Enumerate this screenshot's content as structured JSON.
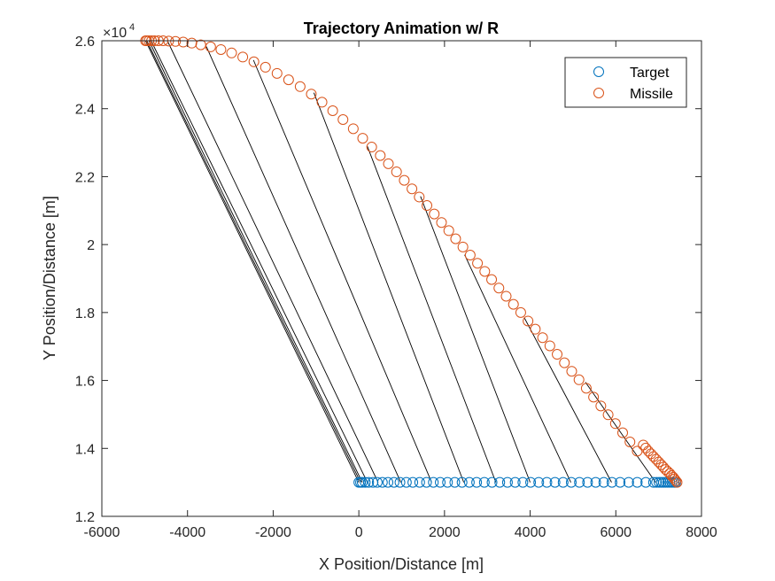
{
  "chart_data": {
    "type": "scatter",
    "title": "Trajectory Animation w/ R",
    "xlabel": "X Position/Distance [m]",
    "ylabel": "Y Position/Distance [m]",
    "xlim": [
      -6000,
      8000
    ],
    "ylim": [
      12000,
      26000
    ],
    "x_ticks": [
      -6000,
      -4000,
      -2000,
      0,
      2000,
      4000,
      6000,
      8000
    ],
    "x_tick_labels": [
      "-6000",
      "-4000",
      "-2000",
      "0",
      "2000",
      "4000",
      "6000",
      "8000"
    ],
    "y_ticks": [
      12000,
      14000,
      16000,
      18000,
      20000,
      22000,
      24000,
      26000
    ],
    "y_tick_labels": [
      "1.2",
      "1.4",
      "1.6",
      "1.8",
      "2",
      "2.2",
      "2.4",
      "2.6"
    ],
    "y_exponent": {
      "base": "×10",
      "power": "4"
    },
    "grid": false,
    "legend_position": "top-right",
    "colors": {
      "target": "#0072BD",
      "missile": "#D95319",
      "range_line": "#000000",
      "axis": "#262626"
    },
    "series": [
      {
        "name": "Target",
        "marker": "circle",
        "x": [
          0,
          40,
          80,
          150,
          230,
          330,
          430,
          550,
          680,
          820,
          960,
          1110,
          1260,
          1420,
          1580,
          1740,
          1900,
          2070,
          2240,
          2410,
          2580,
          2750,
          2930,
          3110,
          3290,
          3470,
          3650,
          3830,
          4010,
          4200,
          4390,
          4580,
          4770,
          4960,
          5150,
          5340,
          5530,
          5720,
          5910,
          6100,
          6300,
          6500,
          6700,
          6880,
          6950,
          7010,
          7060,
          7110,
          7160,
          7210,
          7260,
          7310,
          7360,
          7400
        ],
        "y": [
          13000,
          13000,
          13000,
          13000,
          13000,
          13000,
          13000,
          13000,
          13000,
          13000,
          13000,
          13000,
          13000,
          13000,
          13000,
          13000,
          13000,
          13000,
          13000,
          13000,
          13000,
          13000,
          13000,
          13000,
          13000,
          13000,
          13000,
          13000,
          13000,
          13000,
          13000,
          13000,
          13000,
          13000,
          13000,
          13000,
          13000,
          13000,
          13000,
          13000,
          13000,
          13000,
          13000,
          13000,
          13000,
          13000,
          13000,
          13000,
          13000,
          13000,
          13000,
          13000,
          13000,
          13000
        ]
      },
      {
        "name": "Missile",
        "marker": "circle",
        "x": [
          -4980,
          -4950,
          -4900,
          -4840,
          -4770,
          -4680,
          -4570,
          -4440,
          -4280,
          -4100,
          -3900,
          -3690,
          -3460,
          -3220,
          -2970,
          -2710,
          -2450,
          -2180,
          -1910,
          -1640,
          -1370,
          -1110,
          -860,
          -610,
          -370,
          -130,
          90,
          300,
          500,
          690,
          880,
          1060,
          1240,
          1410,
          1590,
          1760,
          1930,
          2100,
          2260,
          2430,
          2600,
          2770,
          2940,
          3100,
          3270,
          3440,
          3610,
          3780,
          3950,
          4120,
          4290,
          4460,
          4630,
          4800,
          4970,
          5140,
          5310,
          5480,
          5650,
          5820,
          5990,
          6160,
          6330,
          6500,
          6640,
          6700,
          6760,
          6820,
          6880,
          6940,
          7000,
          7060,
          7110,
          7160,
          7210,
          7260,
          7300,
          7340,
          7370,
          7400,
          7430
        ],
        "y": [
          26000,
          26000,
          26000,
          26000,
          26000,
          26000,
          26000,
          25990,
          25980,
          25960,
          25930,
          25880,
          25820,
          25740,
          25640,
          25520,
          25380,
          25220,
          25040,
          24850,
          24650,
          24430,
          24190,
          23940,
          23680,
          23410,
          23130,
          22870,
          22620,
          22380,
          22140,
          21890,
          21640,
          21400,
          21150,
          20900,
          20650,
          20410,
          20170,
          19930,
          19690,
          19450,
          19210,
          18970,
          18720,
          18480,
          18240,
          18000,
          17750,
          17510,
          17260,
          17020,
          16770,
          16520,
          16270,
          16020,
          15770,
          15510,
          15250,
          14990,
          14730,
          14460,
          14190,
          13920,
          14100,
          14010,
          13920,
          13840,
          13760,
          13680,
          13600,
          13520,
          13450,
          13380,
          13320,
          13260,
          13200,
          13150,
          13100,
          13050,
          13000
        ]
      }
    ],
    "range_lines": [
      {
        "target": [
          0,
          13000
        ],
        "missile": [
          -4980,
          26000
        ]
      },
      {
        "target": [
          40,
          13000
        ],
        "missile": [
          -4950,
          26000
        ]
      },
      {
        "target": [
          80,
          13000
        ],
        "missile": [
          -4900,
          26000
        ]
      },
      {
        "target": [
          200,
          13000
        ],
        "missile": [
          -4850,
          26000
        ]
      },
      {
        "target": [
          450,
          13000
        ],
        "missile": [
          -4470,
          26000
        ]
      },
      {
        "target": [
          980,
          13000
        ],
        "missile": [
          -3560,
          25830
        ]
      },
      {
        "target": [
          1700,
          13000
        ],
        "missile": [
          -2460,
          25430
        ]
      },
      {
        "target": [
          2450,
          13000
        ],
        "missile": [
          -1050,
          24470
        ]
      },
      {
        "target": [
          3200,
          13000
        ],
        "missile": [
          200,
          22890
        ]
      },
      {
        "target": [
          4000,
          13000
        ],
        "missile": [
          1440,
          21420
        ]
      },
      {
        "target": [
          4950,
          13000
        ],
        "missile": [
          2470,
          19700
        ]
      },
      {
        "target": [
          5900,
          13000
        ],
        "missile": [
          3870,
          17830
        ]
      },
      {
        "target": [
          6930,
          13000
        ],
        "missile": [
          5290,
          15950
        ]
      }
    ]
  }
}
